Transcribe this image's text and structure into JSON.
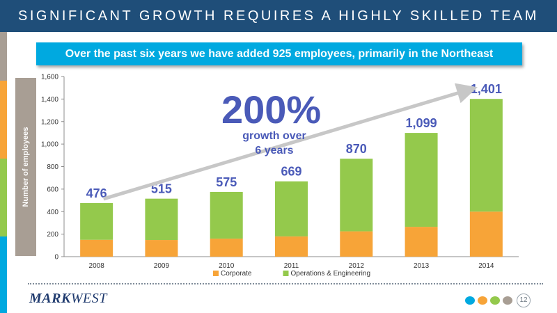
{
  "header": {
    "title": "SIGNIFICANT GROWTH REQUIRES A HIGHLY SKILLED TEAM"
  },
  "subtitle": "Over the past six years we have added 925 employees, primarily in the Northeast",
  "callout": {
    "big": "200%",
    "line1": "growth over",
    "line2": "6 years"
  },
  "footer": {
    "logo_bold": "MARK",
    "logo_thin": "WEST",
    "page_number": "12"
  },
  "colors": {
    "header_bg": "#1f4e79",
    "subtitle_bg": "#00a9e0",
    "corporate": "#f7a438",
    "operations": "#94c94c",
    "value_label": "#4a5ab8",
    "accent_strip": [
      "#a89e94",
      "#f7a438",
      "#94c94c",
      "#00a9e0"
    ]
  },
  "chart_data": {
    "type": "bar",
    "stacked": true,
    "categories": [
      "2008",
      "2009",
      "2010",
      "2011",
      "2012",
      "2013",
      "2014"
    ],
    "series": [
      {
        "name": "Corporate",
        "values": [
          150,
          148,
          160,
          180,
          225,
          265,
          400
        ]
      },
      {
        "name": "Operations & Engineering",
        "values": [
          326,
          367,
          415,
          489,
          645,
          834,
          1001
        ]
      }
    ],
    "totals": [
      476,
      515,
      575,
      669,
      870,
      1099,
      1401
    ],
    "total_labels": [
      "476",
      "515",
      "575",
      "669",
      "870",
      "1,099",
      "1,401"
    ],
    "ylabel": "Number of employees",
    "xlabel": "",
    "ylim": [
      0,
      1600
    ],
    "yticks": [
      0,
      200,
      400,
      600,
      800,
      1000,
      1200,
      1400,
      1600
    ],
    "ytick_labels": [
      "0",
      "200",
      "400",
      "600",
      "800",
      "1,000",
      "1,200",
      "1,400",
      "1,600"
    ],
    "legend": {
      "position": "bottom",
      "entries": [
        "Corporate",
        "Operations & Engineering"
      ]
    },
    "grid": false,
    "annotation": {
      "type": "arrow",
      "from_category": "2008",
      "to_category": "2014"
    }
  }
}
